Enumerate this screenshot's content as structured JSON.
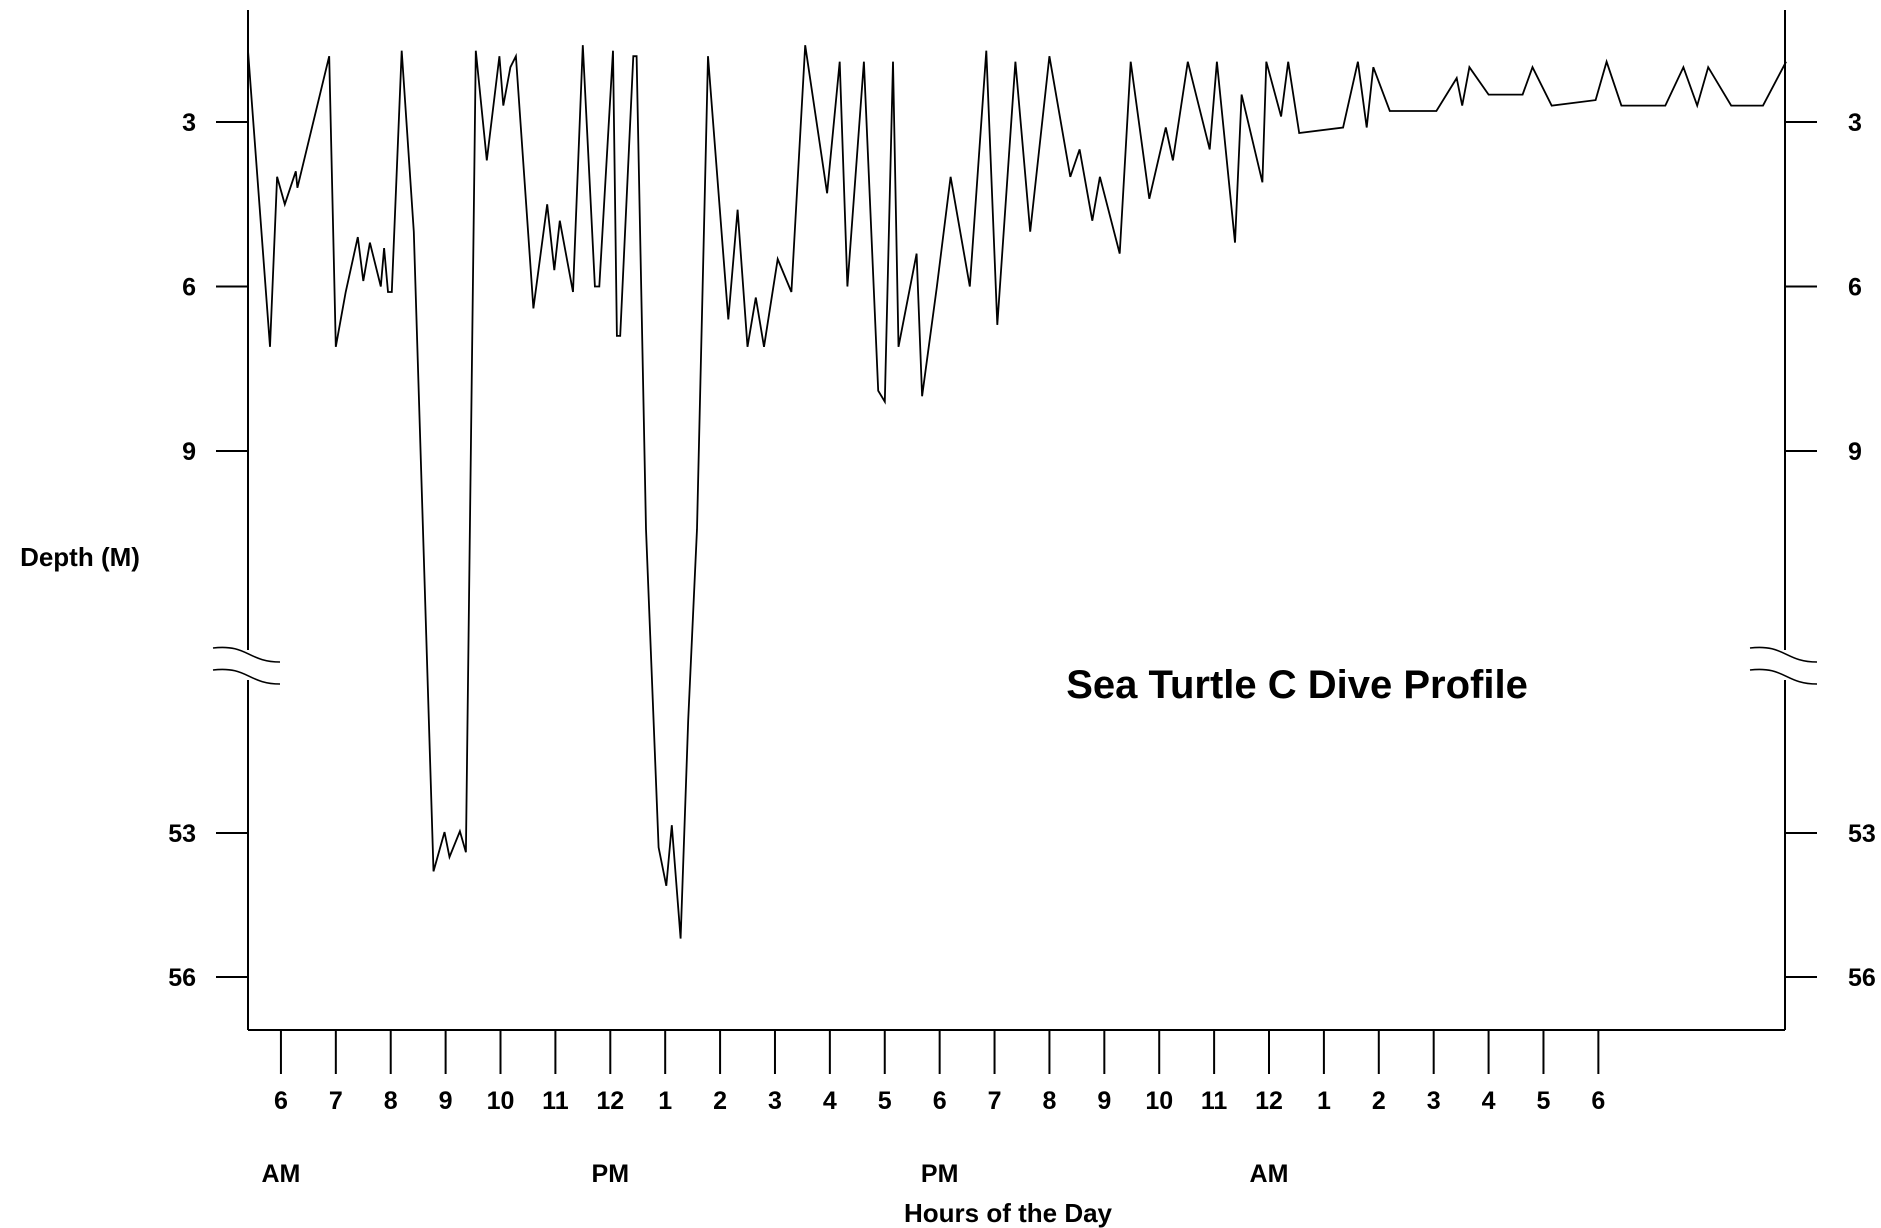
{
  "chart_data": {
    "type": "line",
    "title": "Sea Turtle C Dive Profile",
    "xlabel": "Hours of the Day",
    "ylabel": "Depth (M)",
    "y_axis": {
      "inverted": true,
      "broken": true,
      "upper_segment": {
        "ylim": [
          1.5,
          9.0
        ],
        "ticks": [
          3,
          6,
          9
        ]
      },
      "lower_segment": {
        "ylim": [
          53.0,
          56.0
        ],
        "ticks": [
          53,
          56
        ]
      },
      "tick_labels": [
        "3",
        "6",
        "9",
        "53",
        "56"
      ],
      "right_side_mirror": true
    },
    "x_axis": {
      "unit": "hour",
      "range": [
        5.4,
        33.4
      ],
      "ticks": [
        {
          "x": 6,
          "label": "6"
        },
        {
          "x": 7,
          "label": "7"
        },
        {
          "x": 8,
          "label": "8"
        },
        {
          "x": 9,
          "label": "9"
        },
        {
          "x": 10,
          "label": "10"
        },
        {
          "x": 11,
          "label": "11"
        },
        {
          "x": 12,
          "label": "12"
        },
        {
          "x": 13,
          "label": "1"
        },
        {
          "x": 14,
          "label": "2"
        },
        {
          "x": 15,
          "label": "3"
        },
        {
          "x": 16,
          "label": "4"
        },
        {
          "x": 17,
          "label": "5"
        },
        {
          "x": 18,
          "label": "6"
        },
        {
          "x": 19,
          "label": "7"
        },
        {
          "x": 20,
          "label": "8"
        },
        {
          "x": 21,
          "label": "9"
        },
        {
          "x": 22,
          "label": "10"
        },
        {
          "x": 23,
          "label": "11"
        },
        {
          "x": 24,
          "label": "12"
        },
        {
          "x": 25,
          "label": "1"
        },
        {
          "x": 26,
          "label": "2"
        },
        {
          "x": 27,
          "label": "3"
        },
        {
          "x": 28,
          "label": "4"
        },
        {
          "x": 29,
          "label": "5"
        },
        {
          "x": 30,
          "label": "6"
        }
      ],
      "period_labels": [
        {
          "x": 6,
          "label": "AM"
        },
        {
          "x": 12,
          "label": "PM"
        },
        {
          "x": 18,
          "label": "PM"
        },
        {
          "x": 24,
          "label": "AM"
        }
      ]
    },
    "grid": false,
    "series": [
      {
        "points": [
          [
            5.4,
            1.7
          ],
          [
            5.8,
            7.1
          ],
          [
            5.93,
            4.0
          ],
          [
            6.07,
            4.5
          ],
          [
            6.27,
            3.9
          ],
          [
            6.3,
            4.2
          ],
          [
            6.88,
            1.8
          ],
          [
            7.0,
            7.1
          ],
          [
            7.18,
            6.1
          ],
          [
            7.4,
            5.1
          ],
          [
            7.5,
            5.9
          ],
          [
            7.62,
            5.2
          ],
          [
            7.82,
            6.0
          ],
          [
            7.88,
            5.3
          ],
          [
            7.95,
            6.1
          ],
          [
            8.02,
            6.1
          ],
          [
            8.2,
            1.7
          ],
          [
            8.42,
            5.0
          ],
          [
            8.78,
            53.8
          ],
          [
            8.98,
            52.9
          ],
          [
            9.07,
            53.5
          ],
          [
            9.26,
            52.8
          ],
          [
            9.37,
            53.4
          ],
          [
            9.55,
            1.7
          ],
          [
            9.75,
            3.7
          ],
          [
            9.98,
            1.8
          ],
          [
            10.05,
            2.7
          ],
          [
            10.18,
            2.0
          ],
          [
            10.28,
            1.8
          ],
          [
            10.6,
            6.4
          ],
          [
            10.85,
            4.5
          ],
          [
            10.98,
            5.7
          ],
          [
            11.08,
            4.8
          ],
          [
            11.32,
            6.1
          ],
          [
            11.5,
            1.6
          ],
          [
            11.72,
            6.0
          ],
          [
            11.8,
            6.0
          ],
          [
            12.05,
            1.7
          ],
          [
            12.12,
            6.9
          ],
          [
            12.18,
            6.9
          ],
          [
            12.42,
            1.8
          ],
          [
            12.48,
            1.8
          ],
          [
            12.65,
            18.0
          ],
          [
            12.88,
            53.3
          ],
          [
            13.02,
            54.1
          ],
          [
            13.12,
            52.1
          ],
          [
            13.28,
            55.2
          ],
          [
            13.42,
            40.0
          ],
          [
            13.58,
            18.0
          ],
          [
            13.78,
            1.8
          ],
          [
            14.15,
            6.6
          ],
          [
            14.32,
            4.6
          ],
          [
            14.5,
            7.1
          ],
          [
            14.65,
            6.2
          ],
          [
            14.8,
            7.1
          ],
          [
            15.05,
            5.5
          ],
          [
            15.3,
            6.1
          ],
          [
            15.55,
            1.6
          ],
          [
            15.95,
            4.3
          ],
          [
            16.18,
            1.9
          ],
          [
            16.32,
            6.0
          ],
          [
            16.62,
            1.9
          ],
          [
            16.88,
            7.9
          ],
          [
            17.0,
            8.1
          ],
          [
            17.15,
            1.9
          ],
          [
            17.25,
            7.1
          ],
          [
            17.58,
            5.4
          ],
          [
            17.68,
            8.0
          ],
          [
            17.95,
            6.0
          ],
          [
            18.2,
            4.0
          ],
          [
            18.55,
            6.0
          ],
          [
            18.85,
            1.7
          ],
          [
            19.05,
            6.7
          ],
          [
            19.38,
            1.9
          ],
          [
            19.65,
            5.0
          ],
          [
            20.0,
            1.8
          ],
          [
            20.38,
            4.0
          ],
          [
            20.55,
            3.5
          ],
          [
            20.78,
            4.8
          ],
          [
            20.92,
            4.0
          ],
          [
            21.28,
            5.4
          ],
          [
            21.48,
            1.9
          ],
          [
            21.82,
            4.4
          ],
          [
            22.12,
            3.1
          ],
          [
            22.25,
            3.7
          ],
          [
            22.52,
            1.9
          ],
          [
            22.92,
            3.5
          ],
          [
            23.05,
            1.9
          ],
          [
            23.38,
            5.2
          ],
          [
            23.5,
            2.5
          ],
          [
            23.88,
            4.1
          ],
          [
            23.95,
            1.9
          ],
          [
            24.22,
            2.9
          ],
          [
            24.35,
            1.9
          ],
          [
            24.55,
            3.2
          ],
          [
            25.35,
            3.1
          ],
          [
            25.62,
            1.9
          ],
          [
            25.78,
            3.1
          ],
          [
            25.9,
            2.0
          ],
          [
            26.2,
            2.8
          ],
          [
            27.05,
            2.8
          ],
          [
            27.42,
            2.2
          ],
          [
            27.52,
            2.7
          ],
          [
            27.65,
            2.0
          ],
          [
            28.0,
            2.5
          ],
          [
            28.62,
            2.5
          ],
          [
            28.8,
            2.0
          ],
          [
            29.15,
            2.7
          ],
          [
            29.95,
            2.6
          ],
          [
            30.15,
            1.9
          ],
          [
            30.42,
            2.7
          ],
          [
            31.22,
            2.7
          ],
          [
            31.55,
            2.0
          ],
          [
            31.8,
            2.7
          ],
          [
            32.0,
            2.0
          ],
          [
            32.42,
            2.7
          ],
          [
            33.0,
            2.7
          ],
          [
            33.42,
            1.9
          ]
        ]
      }
    ]
  }
}
